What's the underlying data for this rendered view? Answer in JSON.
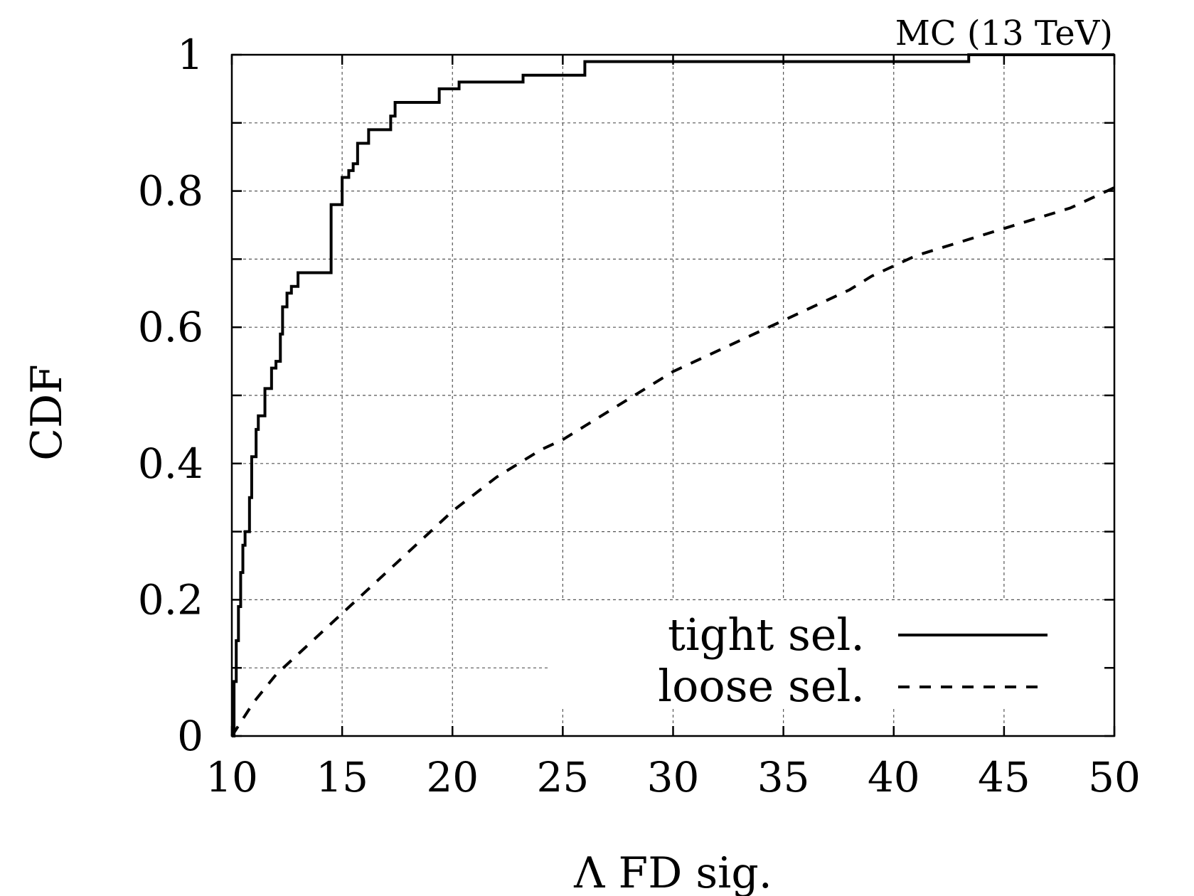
{
  "chart_data": {
    "type": "line",
    "annotation": "MC (13 TeV)",
    "xlabel": "Λ FD sig.",
    "ylabel": "CDF",
    "xlim": [
      10,
      50
    ],
    "ylim": [
      0,
      1
    ],
    "xticks": [
      10,
      15,
      20,
      25,
      30,
      35,
      40,
      45,
      50
    ],
    "xtick_labels": [
      "10",
      "15",
      "20",
      "25",
      "30",
      "35",
      "40",
      "45",
      "50"
    ],
    "yticks": [
      0,
      0.2,
      0.4,
      0.6,
      0.8,
      1
    ],
    "ytick_labels": [
      "0",
      "0.2",
      "0.4",
      "0.6",
      "0.8",
      "1"
    ],
    "grid": true,
    "legend_position": "bottom-right",
    "series": [
      {
        "name": "tight sel.",
        "style": "solid",
        "step": true,
        "x": [
          10.0,
          10.1,
          10.2,
          10.3,
          10.4,
          10.5,
          10.6,
          10.8,
          10.9,
          11.1,
          11.2,
          11.3,
          11.5,
          11.6,
          11.8,
          12.0,
          12.2,
          12.3,
          12.5,
          12.7,
          12.8,
          13.0,
          13.2,
          13.4,
          13.8,
          14.5,
          14.6,
          15.0,
          15.3,
          15.5,
          15.7,
          16.2,
          17.2,
          17.4,
          19.4,
          20.3,
          23.2,
          26.0,
          43.4,
          50.0
        ],
        "y": [
          0.0,
          0.08,
          0.14,
          0.19,
          0.24,
          0.28,
          0.3,
          0.35,
          0.41,
          0.45,
          0.47,
          0.47,
          0.51,
          0.51,
          0.54,
          0.55,
          0.59,
          0.63,
          0.65,
          0.66,
          0.66,
          0.68,
          0.68,
          0.68,
          0.68,
          0.78,
          0.78,
          0.82,
          0.83,
          0.84,
          0.87,
          0.89,
          0.91,
          0.93,
          0.95,
          0.96,
          0.97,
          0.99,
          1.0,
          1.0
        ]
      },
      {
        "name": "loose sel.",
        "style": "dashed",
        "step": false,
        "x": [
          10,
          11,
          12,
          13,
          14,
          15,
          16,
          17,
          18,
          19,
          20,
          21,
          22,
          23,
          24,
          25,
          26,
          27,
          28,
          29,
          30,
          31,
          32,
          33,
          34,
          35,
          36,
          37,
          38,
          39,
          40,
          41,
          42,
          43,
          44,
          45,
          46,
          47,
          48,
          49,
          50
        ],
        "y": [
          0.0,
          0.05,
          0.09,
          0.12,
          0.15,
          0.18,
          0.21,
          0.24,
          0.27,
          0.3,
          0.33,
          0.355,
          0.38,
          0.4,
          0.42,
          0.435,
          0.455,
          0.475,
          0.495,
          0.515,
          0.535,
          0.55,
          0.565,
          0.58,
          0.595,
          0.61,
          0.625,
          0.64,
          0.655,
          0.675,
          0.69,
          0.705,
          0.715,
          0.725,
          0.735,
          0.745,
          0.755,
          0.765,
          0.775,
          0.79,
          0.805
        ]
      }
    ]
  }
}
